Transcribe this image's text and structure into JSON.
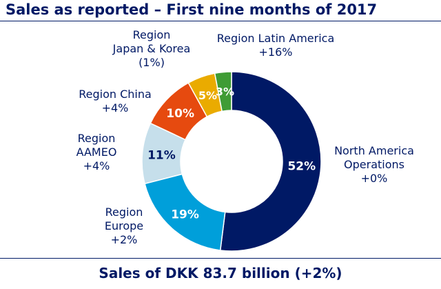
{
  "title": "Sales as reported – First nine months of 2017",
  "footer": "Sales of DKK 83.7 billion (+2%)",
  "chart_data": {
    "type": "pie",
    "title": "Sales as reported – First nine months of 2017",
    "donut": true,
    "slices": [
      {
        "label": [
          "North America",
          "Operations"
        ],
        "change": "+0%",
        "percent": 52,
        "percent_label": "52%",
        "color": "#001965",
        "text_color": "#ffffff"
      },
      {
        "label": [
          "Region",
          "Europe"
        ],
        "change": "+2%",
        "percent": 19,
        "percent_label": "19%",
        "color": "#009fda",
        "text_color": "#ffffff"
      },
      {
        "label": [
          "Region",
          "AAMEO"
        ],
        "change": "+4%",
        "percent": 11,
        "percent_label": "11%",
        "color": "#c6dfeb",
        "text_color": "#001965"
      },
      {
        "label": [
          "Region China"
        ],
        "change": "+4%",
        "percent": 10,
        "percent_label": "10%",
        "color": "#e64a0f",
        "text_color": "#ffffff"
      },
      {
        "label": [
          "Region",
          "Japan & Korea"
        ],
        "change": "(1%)",
        "percent": 5,
        "percent_label": "5%",
        "color": "#eaab00",
        "text_color": "#ffffff"
      },
      {
        "label": [
          "Region Latin America"
        ],
        "change": "+16%",
        "percent": 3,
        "percent_label": "3%",
        "color": "#3f9c35",
        "text_color": "#ffffff"
      }
    ]
  }
}
